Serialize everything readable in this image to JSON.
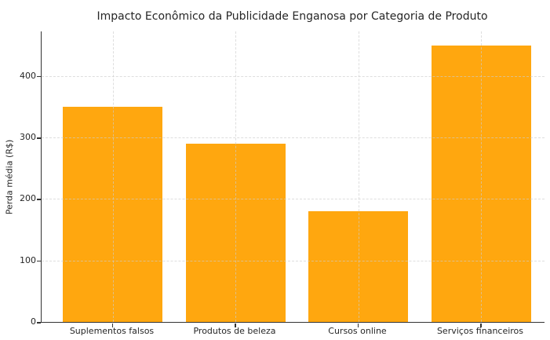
{
  "title": "Impacto Econômico da Publicidade Enganosa por Categoria de Produto",
  "chart_data": {
    "type": "bar",
    "title": "Impacto Econômico da Publicidade Enganosa por Categoria de Produto",
    "categories": [
      "Suplementos falsos",
      "Produtos de beleza",
      "Cursos online",
      "Serviços financeiros"
    ],
    "values": [
      350,
      290,
      180,
      450
    ],
    "xlabel": "",
    "ylabel": "Perda média (R$)",
    "ylim": [
      0,
      472.5
    ],
    "yticks": [
      0,
      100,
      200,
      300,
      400
    ],
    "bar_color": "#FFA70F",
    "grid": "dashed, both axes, light gray, drawn above bars",
    "legend": "none",
    "background": "#FFFFFF",
    "text_color": "#262626"
  }
}
